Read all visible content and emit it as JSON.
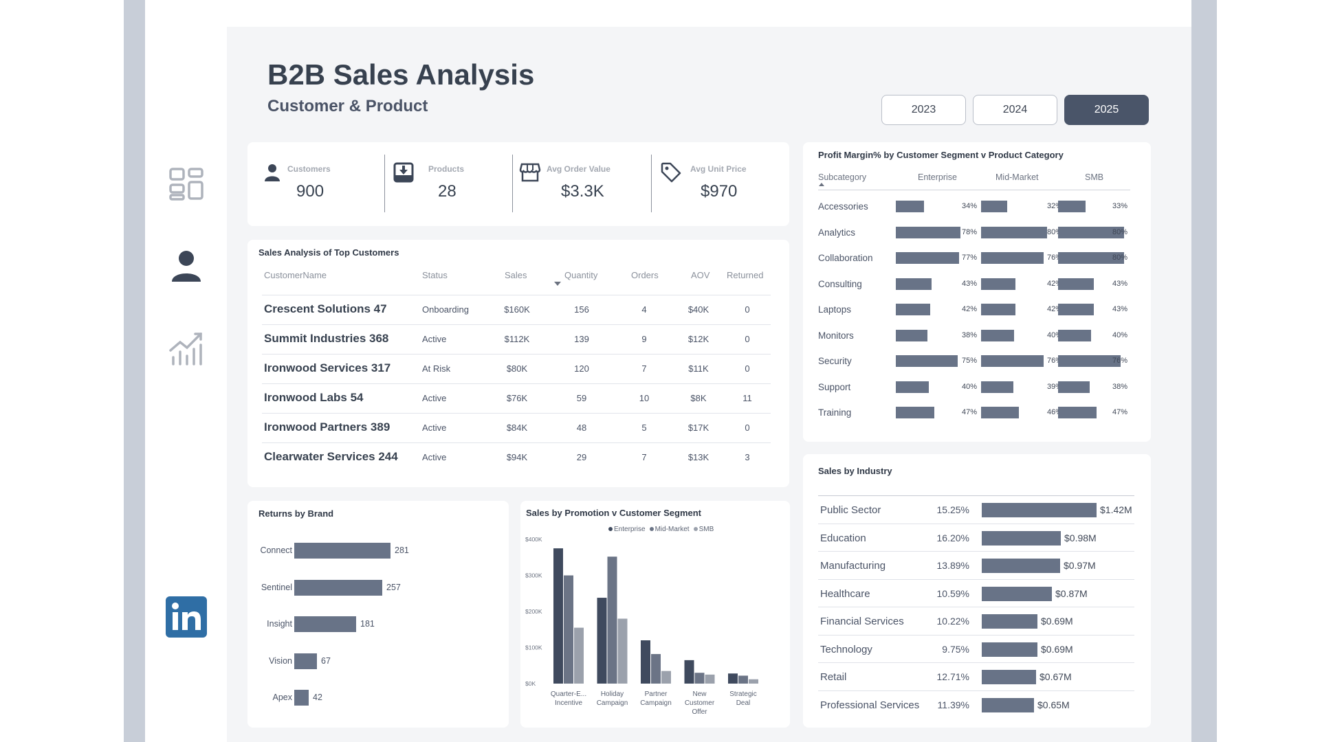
{
  "header": {
    "title": "B2B Sales Analysis",
    "subtitle": "Customer & Product"
  },
  "years": [
    {
      "label": "2023",
      "active": false
    },
    {
      "label": "2024",
      "active": false
    },
    {
      "label": "2025",
      "active": true
    }
  ],
  "nav": [
    {
      "name": "dashboard-grid-icon"
    },
    {
      "name": "person-icon"
    },
    {
      "name": "trend-chart-icon"
    },
    {
      "name": "linkedin-icon"
    }
  ],
  "kpis": [
    {
      "label": "Customers",
      "value": "900",
      "icon": "person-icon"
    },
    {
      "label": "Products",
      "value": "28",
      "icon": "download-box-icon"
    },
    {
      "label": "Avg Order Value",
      "value": "$3.3K",
      "icon": "store-icon"
    },
    {
      "label": "Avg Unit Price",
      "value": "$970",
      "icon": "price-tag-icon"
    }
  ],
  "top_customers": {
    "title": "Sales Analysis of Top Customers",
    "columns": [
      "CustomerName",
      "Status",
      "Sales",
      "Quantity",
      "Orders",
      "AOV",
      "Returned"
    ],
    "rows": [
      {
        "name": "Crescent Solutions 47",
        "status": "Onboarding",
        "sales": "$160K",
        "quantity": "156",
        "orders": "4",
        "aov": "$40K",
        "returned": "0"
      },
      {
        "name": "Summit Industries 368",
        "status": "Active",
        "sales": "$112K",
        "quantity": "139",
        "orders": "9",
        "aov": "$12K",
        "returned": "0"
      },
      {
        "name": "Ironwood Services 317",
        "status": "At Risk",
        "sales": "$80K",
        "quantity": "120",
        "orders": "7",
        "aov": "$11K",
        "returned": "0"
      },
      {
        "name": "Ironwood Labs 54",
        "status": "Active",
        "sales": "$76K",
        "quantity": "59",
        "orders": "10",
        "aov": "$8K",
        "returned": "11"
      },
      {
        "name": "Ironwood Partners 389",
        "status": "Active",
        "sales": "$84K",
        "quantity": "48",
        "orders": "5",
        "aov": "$17K",
        "returned": "0"
      },
      {
        "name": "Clearwater Services 244",
        "status": "Active",
        "sales": "$94K",
        "quantity": "29",
        "orders": "7",
        "aov": "$13K",
        "returned": "3"
      }
    ]
  },
  "profit_margin": {
    "title": "Profit Margin% by Customer Segment v Product Category",
    "columns": [
      "Subcategory",
      "Enterprise",
      "Mid-Market",
      "SMB"
    ],
    "rows": [
      {
        "label": "Accessories",
        "values": [
          34,
          32,
          33
        ],
        "text": [
          "34%",
          "32%",
          "33%"
        ]
      },
      {
        "label": "Analytics",
        "values": [
          78,
          80,
          80
        ],
        "text": [
          "78%",
          "80%",
          "80%"
        ]
      },
      {
        "label": "Collaboration",
        "values": [
          77,
          76,
          80
        ],
        "text": [
          "77%",
          "76%",
          "80%"
        ]
      },
      {
        "label": "Consulting",
        "values": [
          43,
          42,
          43
        ],
        "text": [
          "43%",
          "42%",
          "43%"
        ]
      },
      {
        "label": "Laptops",
        "values": [
          42,
          42,
          43
        ],
        "text": [
          "42%",
          "42%",
          "43%"
        ]
      },
      {
        "label": "Monitors",
        "values": [
          38,
          40,
          40
        ],
        "text": [
          "38%",
          "40%",
          "40%"
        ]
      },
      {
        "label": "Security",
        "values": [
          75,
          76,
          76
        ],
        "text": [
          "75%",
          "76%",
          "76%"
        ]
      },
      {
        "label": "Support",
        "values": [
          40,
          39,
          38
        ],
        "text": [
          "40%",
          "39%",
          "38%"
        ]
      },
      {
        "label": "Training",
        "values": [
          47,
          46,
          47
        ],
        "text": [
          "47%",
          "46%",
          "47%"
        ]
      }
    ]
  },
  "industry": {
    "title": "Sales  by Industry",
    "rows": [
      {
        "name": "Public Sector",
        "pct": "15.25%",
        "sales": 1.42,
        "label": "$1.42M"
      },
      {
        "name": "Education",
        "pct": "16.20%",
        "sales": 0.98,
        "label": "$0.98M"
      },
      {
        "name": "Manufacturing",
        "pct": "13.89%",
        "sales": 0.97,
        "label": "$0.97M"
      },
      {
        "name": "Healthcare",
        "pct": "10.59%",
        "sales": 0.87,
        "label": "$0.87M"
      },
      {
        "name": "Financial Services",
        "pct": "10.22%",
        "sales": 0.69,
        "label": "$0.69M"
      },
      {
        "name": "Technology",
        "pct": "9.75%",
        "sales": 0.69,
        "label": "$0.69M"
      },
      {
        "name": "Retail",
        "pct": "12.71%",
        "sales": 0.67,
        "label": "$0.67M"
      },
      {
        "name": "Professional Services",
        "pct": "11.39%",
        "sales": 0.65,
        "label": "$0.65M"
      }
    ]
  },
  "returns_by_brand": {
    "title": "Returns by Brand",
    "rows": [
      {
        "brand": "Connect",
        "value": 281
      },
      {
        "brand": "Sentinel",
        "value": 257
      },
      {
        "brand": "Insight",
        "value": 181
      },
      {
        "brand": "Vision",
        "value": 67
      },
      {
        "brand": "Apex",
        "value": 42
      }
    ]
  },
  "chart_data": {
    "type": "bar",
    "title": "Sales by Promotion v Customer Segment",
    "categories": [
      "Quarter-E... Incentive",
      "Holiday Campaign",
      "Partner Campaign",
      "New Customer Offer",
      "Strategic Deal"
    ],
    "category_lines": [
      [
        "Quarter-E...",
        "Incentive"
      ],
      [
        "Holiday",
        "Campaign"
      ],
      [
        "Partner",
        "Campaign"
      ],
      [
        "New",
        "Customer",
        "Offer"
      ],
      [
        "Strategic",
        "Deal"
      ]
    ],
    "series": [
      {
        "name": "Enterprise",
        "values": [
          375,
          238,
          120,
          65,
          28
        ],
        "color": "#3f4a5e"
      },
      {
        "name": "Mid-Market",
        "values": [
          300,
          352,
          82,
          30,
          22
        ],
        "color": "#6b7486"
      },
      {
        "name": "SMB",
        "values": [
          155,
          180,
          35,
          25,
          12
        ],
        "color": "#9ba1ac"
      }
    ],
    "yticks": [
      "$0K",
      "$100K",
      "$200K",
      "$300K",
      "$400K"
    ],
    "ylim": [
      0,
      400
    ],
    "xlabel": "",
    "ylabel": "",
    "legend": "top-center"
  }
}
